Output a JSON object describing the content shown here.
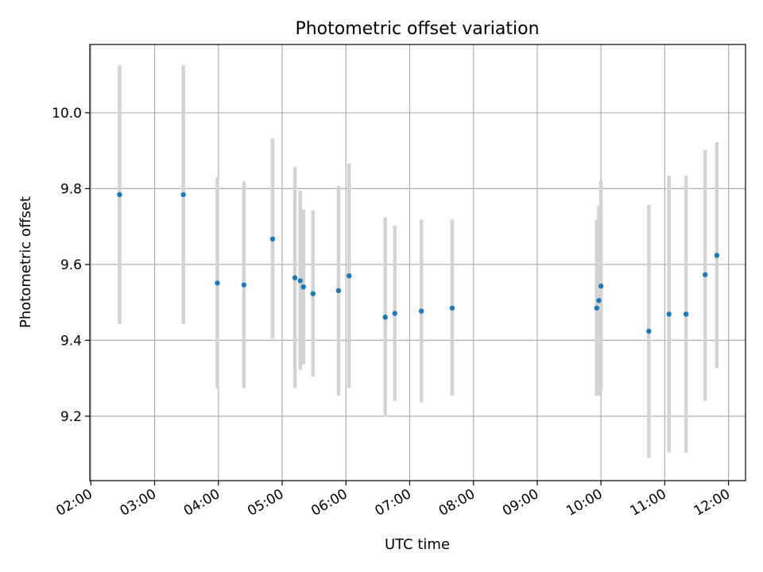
{
  "chart_data": {
    "type": "scatter",
    "title": "Photometric offset variation",
    "xlabel": "UTC time",
    "ylabel": "Photometric offset",
    "x_unit": "UTC time (HH:MM)",
    "xlim": [
      "01:59",
      "12:16"
    ],
    "ylim": [
      9.03,
      10.18
    ],
    "x_ticks": [
      "02:00",
      "03:00",
      "04:00",
      "05:00",
      "06:00",
      "07:00",
      "08:00",
      "09:00",
      "10:00",
      "11:00",
      "12:00"
    ],
    "y_ticks": [
      9.2,
      9.4,
      9.6,
      9.8,
      10.0
    ],
    "y_tick_labels": [
      "9.2",
      "9.4",
      "9.6",
      "9.8",
      "10.0"
    ],
    "grid": true,
    "point_color": "#1f77b4",
    "errorbar_color": "#d3d3d3",
    "points": [
      {
        "x": "02:27",
        "y": 9.784,
        "low": 9.443,
        "high": 10.125
      },
      {
        "x": "03:27",
        "y": 9.784,
        "low": 9.443,
        "high": 10.125
      },
      {
        "x": "03:59",
        "y": 9.551,
        "low": 9.272,
        "high": 9.83
      },
      {
        "x": "04:24",
        "y": 9.546,
        "low": 9.274,
        "high": 9.819
      },
      {
        "x": "04:51",
        "y": 9.667,
        "low": 9.404,
        "high": 9.932
      },
      {
        "x": "05:12",
        "y": 9.565,
        "low": 9.274,
        "high": 9.857
      },
      {
        "x": "05:17",
        "y": 9.557,
        "low": 9.322,
        "high": 9.794
      },
      {
        "x": "05:20",
        "y": 9.541,
        "low": 9.337,
        "high": 9.745
      },
      {
        "x": "05:29",
        "y": 9.523,
        "low": 9.305,
        "high": 9.742
      },
      {
        "x": "05:53",
        "y": 9.531,
        "low": 9.254,
        "high": 9.807
      },
      {
        "x": "06:03",
        "y": 9.57,
        "low": 9.274,
        "high": 9.866
      },
      {
        "x": "06:37",
        "y": 9.461,
        "low": 9.199,
        "high": 9.724
      },
      {
        "x": "06:46",
        "y": 9.471,
        "low": 9.24,
        "high": 9.702
      },
      {
        "x": "07:11",
        "y": 9.477,
        "low": 9.236,
        "high": 9.718
      },
      {
        "x": "07:40",
        "y": 9.485,
        "low": 9.254,
        "high": 9.718
      },
      {
        "x": "09:56",
        "y": 9.485,
        "low": 9.254,
        "high": 9.718
      },
      {
        "x": "09:58",
        "y": 9.505,
        "low": 9.254,
        "high": 9.755
      },
      {
        "x": "10:00",
        "y": 9.543,
        "low": 9.266,
        "high": 9.821
      },
      {
        "x": "10:45",
        "y": 9.424,
        "low": 9.09,
        "high": 9.757
      },
      {
        "x": "11:04",
        "y": 9.469,
        "low": 9.104,
        "high": 9.834
      },
      {
        "x": "11:20",
        "y": 9.469,
        "low": 9.104,
        "high": 9.834
      },
      {
        "x": "11:38",
        "y": 9.573,
        "low": 9.24,
        "high": 9.902
      },
      {
        "x": "11:49",
        "y": 9.624,
        "low": 9.327,
        "high": 9.922
      }
    ]
  }
}
